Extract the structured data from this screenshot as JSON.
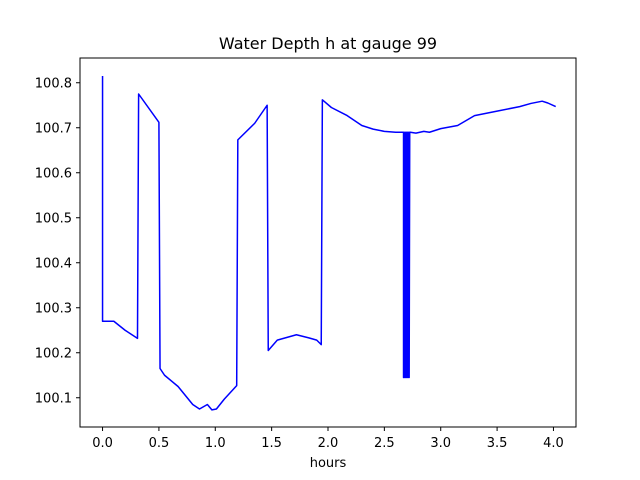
{
  "chart_data": {
    "type": "line",
    "title": "Water Depth h at gauge 99",
    "xlabel": "hours",
    "ylabel": "",
    "xlim": [
      -0.2,
      4.2
    ],
    "ylim": [
      100.035,
      100.855
    ],
    "xticks": [
      0.0,
      0.5,
      1.0,
      1.5,
      2.0,
      2.5,
      3.0,
      3.5,
      4.0
    ],
    "xtick_labels": [
      "0.0",
      "0.5",
      "1.0",
      "1.5",
      "2.0",
      "2.5",
      "3.0",
      "3.5",
      "4.0"
    ],
    "yticks": [
      100.1,
      100.2,
      100.3,
      100.4,
      100.5,
      100.6,
      100.7,
      100.8
    ],
    "ytick_labels": [
      "100.1",
      "100.2",
      "100.3",
      "100.4",
      "100.5",
      "100.6",
      "100.7",
      "100.8"
    ],
    "grid": false,
    "series": [
      {
        "color": "#0000ff",
        "x": [
          0.0,
          0.0,
          0.1,
          0.2,
          0.31,
          0.32,
          0.5,
          0.51,
          0.55,
          0.67,
          0.8,
          0.86,
          0.93,
          0.97,
          1.01,
          1.08,
          1.19,
          1.2,
          1.35,
          1.46,
          1.47,
          1.55,
          1.72,
          1.83,
          1.9,
          1.94,
          1.95,
          2.03,
          2.17,
          2.3,
          2.4,
          2.5,
          2.6,
          2.67,
          2.67,
          2.675,
          2.68,
          2.685,
          2.69,
          2.695,
          2.7,
          2.705,
          2.71,
          2.715,
          2.72,
          2.725,
          2.73,
          2.78,
          2.85,
          2.9,
          3.0,
          3.15,
          3.3,
          3.5,
          3.7,
          3.8,
          3.9,
          3.95,
          4.02
        ],
        "y": [
          100.815,
          100.27,
          100.27,
          100.25,
          100.232,
          100.775,
          100.712,
          100.165,
          100.15,
          100.125,
          100.085,
          100.075,
          100.085,
          100.073,
          100.075,
          100.097,
          100.127,
          100.673,
          100.71,
          100.75,
          100.205,
          100.228,
          100.24,
          100.233,
          100.228,
          100.218,
          100.762,
          100.745,
          100.727,
          100.705,
          100.697,
          100.692,
          100.69,
          100.69,
          100.145,
          100.69,
          100.145,
          100.69,
          100.145,
          100.69,
          100.145,
          100.69,
          100.145,
          100.69,
          100.145,
          100.69,
          100.69,
          100.688,
          100.692,
          100.69,
          100.698,
          100.705,
          100.727,
          100.737,
          100.747,
          100.754,
          100.759,
          100.755,
          100.747
        ]
      }
    ]
  }
}
